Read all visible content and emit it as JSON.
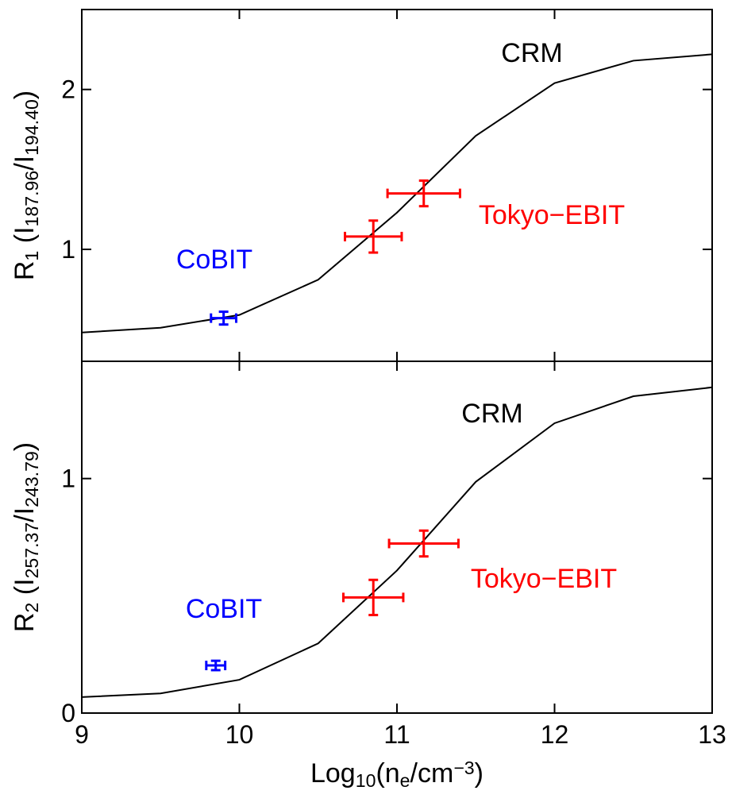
{
  "chart_data": [
    {
      "type": "line",
      "ylabel": [
        {
          "text": "R"
        },
        {
          "text": "1",
          "shift": "sub"
        },
        {
          "text": " (I"
        },
        {
          "text": "187.96",
          "shift": "sub"
        },
        {
          "text": "/I"
        },
        {
          "text": "194.40",
          "shift": "sub"
        },
        {
          "text": ")"
        }
      ],
      "xlim": [
        9,
        13
      ],
      "xticks": [
        9,
        10,
        11,
        12,
        13
      ],
      "ylim": [
        0.3,
        2.5
      ],
      "yticks": [
        1,
        2
      ],
      "series": [
        {
          "name": "CRM",
          "color": "#000000",
          "x": [
            9,
            9.5,
            10,
            10.5,
            11,
            11.5,
            12,
            12.5,
            13
          ],
          "values": [
            0.48,
            0.51,
            0.59,
            0.81,
            1.23,
            1.71,
            2.04,
            2.18,
            2.22
          ]
        },
        {
          "name": "CoBIT",
          "color": "#0000ff",
          "x": [
            9.9
          ],
          "values": [
            0.57
          ],
          "xerr": [
            0.08
          ],
          "yerr": [
            0.04
          ]
        },
        {
          "name": "Tokyo−EBIT",
          "color": "#ff0000",
          "x": [
            10.85,
            11.17
          ],
          "values": [
            1.08,
            1.35
          ],
          "xerr": [
            0.18,
            0.23
          ],
          "yerr": [
            0.1,
            0.08
          ]
        }
      ]
    },
    {
      "type": "line",
      "ylabel": [
        {
          "text": "R"
        },
        {
          "text": "2",
          "shift": "sub"
        },
        {
          "text": " (I"
        },
        {
          "text": "257.37",
          "shift": "sub"
        },
        {
          "text": "/I"
        },
        {
          "text": "243.79",
          "shift": "sub"
        },
        {
          "text": ")"
        }
      ],
      "xlabel": [
        {
          "text": "Log"
        },
        {
          "text": "10",
          "shift": "sub"
        },
        {
          "text": "(n"
        },
        {
          "text": "e",
          "shift": "sub"
        },
        {
          "text": "/cm"
        },
        {
          "text": "−3",
          "shift": "sup"
        },
        {
          "text": ")"
        }
      ],
      "xlim": [
        9,
        13
      ],
      "xticks": [
        9,
        10,
        11,
        12,
        13
      ],
      "ylim": [
        0,
        1.5
      ],
      "yticks": [
        0,
        1
      ],
      "series": [
        {
          "name": "CRM",
          "color": "#000000",
          "x": [
            9,
            9.5,
            10,
            10.5,
            11,
            11.5,
            12,
            12.5,
            13
          ],
          "values": [
            0.068,
            0.084,
            0.142,
            0.297,
            0.608,
            0.986,
            1.236,
            1.351,
            1.389
          ]
        },
        {
          "name": "CoBIT",
          "color": "#0000ff",
          "x": [
            9.85
          ],
          "values": [
            0.203
          ],
          "xerr": [
            0.06
          ],
          "yerr": [
            0.02
          ]
        },
        {
          "name": "Tokyo−EBIT",
          "color": "#ff0000",
          "x": [
            10.85,
            11.17
          ],
          "values": [
            0.493,
            0.723
          ],
          "xerr": [
            0.19,
            0.22
          ],
          "yerr": [
            0.075,
            0.055
          ]
        }
      ]
    }
  ]
}
